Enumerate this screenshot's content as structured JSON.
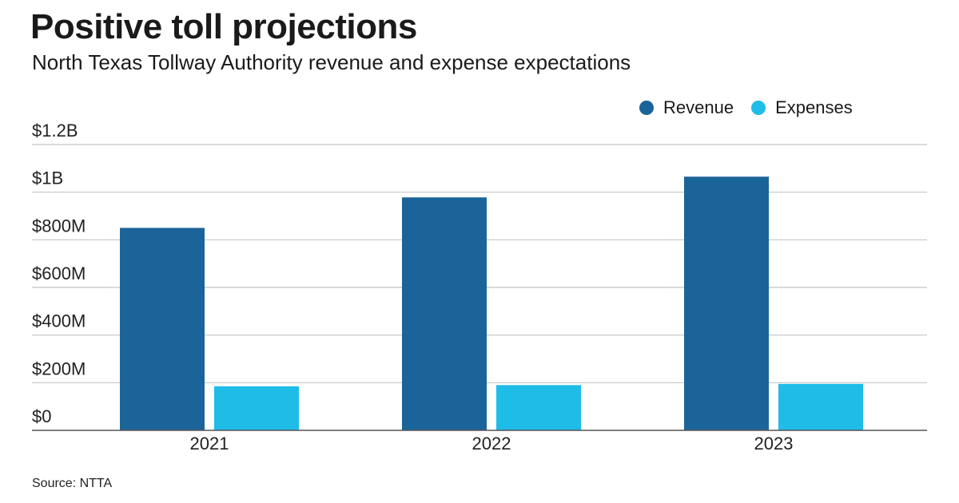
{
  "chart_data": {
    "type": "bar",
    "title": "Positive toll projections",
    "subtitle": "North Texas Tollway Authority revenue and expense expectations",
    "categories": [
      "2021",
      "2022",
      "2023"
    ],
    "series": [
      {
        "name": "Revenue",
        "color": "#1b6499",
        "values": [
          850,
          978,
          1065
        ]
      },
      {
        "name": "Expenses",
        "color": "#1fbce8",
        "values": [
          185,
          190,
          195
        ]
      }
    ],
    "y_unit": "millions of dollars",
    "ylim": [
      0,
      1200
    ],
    "yticks": [
      {
        "value": 0,
        "label": "$0"
      },
      {
        "value": 200,
        "label": "$200M"
      },
      {
        "value": 400,
        "label": "$400M"
      },
      {
        "value": 600,
        "label": "$600M"
      },
      {
        "value": 800,
        "label": "$800M"
      },
      {
        "value": 1000,
        "label": "$1B"
      },
      {
        "value": 1200,
        "label": "$1.2B"
      }
    ],
    "xlabel": "",
    "ylabel": "",
    "grid": true,
    "legend_position": "top-right",
    "source": "Source: NTTA"
  }
}
